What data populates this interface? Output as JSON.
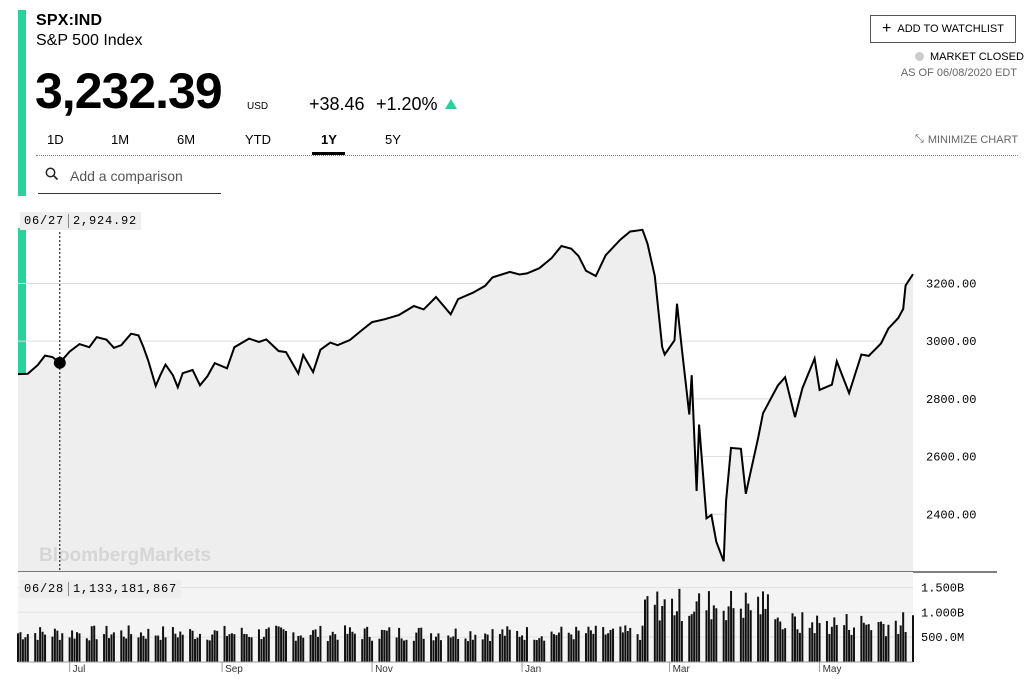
{
  "header": {
    "ticker": "SPX:IND",
    "name": "S&P 500 Index",
    "price": "3,232.39",
    "currency": "USD",
    "change": "+38.46",
    "change_pct": "+1.20%",
    "change_direction_icon": "up-triangle-icon",
    "up_color": "#2bd19b"
  },
  "watchlist": {
    "label": "ADD TO WATCHLIST",
    "icon": "plus-icon"
  },
  "market": {
    "status": "MARKET CLOSED",
    "as_of": "AS OF 06/08/2020 EDT"
  },
  "tabs": [
    {
      "label": "1D"
    },
    {
      "label": "1M"
    },
    {
      "label": "6M"
    },
    {
      "label": "YTD"
    },
    {
      "label": "1Y",
      "selected": true
    },
    {
      "label": "5Y"
    }
  ],
  "minimize": {
    "label": "MINIMIZE CHART",
    "icon": "minimize-icon"
  },
  "search": {
    "placeholder": "Add a comparison",
    "icon": "search-icon"
  },
  "tooltip": {
    "price_date": "06/27",
    "price_value": "2,924.92",
    "volume_date": "06/28",
    "volume_value": "1,133,181,867"
  },
  "watermark": "BloombergMarkets",
  "chart_data": {
    "type": "line",
    "line_color": "#000000",
    "area_color": "#eeeeee",
    "ylim": [
      2200,
      3420
    ],
    "ytick_labels": [
      "3200.00",
      "3000.00",
      "2800.00",
      "2600.00",
      "2400.00"
    ],
    "yticks": [
      3200,
      3000,
      2800,
      2600,
      2400
    ],
    "x_labels": [
      "Jul",
      "Sep",
      "Nov",
      "Jan",
      "Mar",
      "May"
    ],
    "x_label_dates": [
      "2019-07-01",
      "2019-09-01",
      "2019-11-01",
      "2020-01-01",
      "2020-03-01",
      "2020-05-01"
    ],
    "xlim": [
      "2019-06-10",
      "2020-06-08"
    ],
    "series": [
      {
        "values": [
          [
            "2019-06-10",
            2886
          ],
          [
            "2019-06-14",
            2887
          ],
          [
            "2019-06-18",
            2917
          ],
          [
            "2019-06-21",
            2950
          ],
          [
            "2019-06-24",
            2945
          ],
          [
            "2019-06-27",
            2925
          ],
          [
            "2019-07-01",
            2964
          ],
          [
            "2019-07-05",
            2990
          ],
          [
            "2019-07-09",
            2979
          ],
          [
            "2019-07-12",
            3014
          ],
          [
            "2019-07-16",
            3005
          ],
          [
            "2019-07-19",
            2977
          ],
          [
            "2019-07-22",
            2986
          ],
          [
            "2019-07-26",
            3026
          ],
          [
            "2019-07-29",
            3020
          ],
          [
            "2019-07-31",
            2980
          ],
          [
            "2019-08-02",
            2932
          ],
          [
            "2019-08-05",
            2845
          ],
          [
            "2019-08-07",
            2884
          ],
          [
            "2019-08-09",
            2919
          ],
          [
            "2019-08-12",
            2882
          ],
          [
            "2019-08-14",
            2840
          ],
          [
            "2019-08-16",
            2889
          ],
          [
            "2019-08-20",
            2900
          ],
          [
            "2019-08-23",
            2847
          ],
          [
            "2019-08-26",
            2878
          ],
          [
            "2019-08-29",
            2924
          ],
          [
            "2019-09-03",
            2906
          ],
          [
            "2019-09-06",
            2979
          ],
          [
            "2019-09-12",
            3009
          ],
          [
            "2019-09-16",
            2997
          ],
          [
            "2019-09-19",
            3006
          ],
          [
            "2019-09-24",
            2966
          ],
          [
            "2019-09-27",
            2962
          ],
          [
            "2019-10-02",
            2888
          ],
          [
            "2019-10-04",
            2952
          ],
          [
            "2019-10-08",
            2893
          ],
          [
            "2019-10-11",
            2970
          ],
          [
            "2019-10-15",
            2995
          ],
          [
            "2019-10-18",
            2986
          ],
          [
            "2019-10-23",
            3004
          ],
          [
            "2019-10-28",
            3039
          ],
          [
            "2019-11-01",
            3066
          ],
          [
            "2019-11-06",
            3076
          ],
          [
            "2019-11-12",
            3091
          ],
          [
            "2019-11-18",
            3122
          ],
          [
            "2019-11-22",
            3110
          ],
          [
            "2019-11-27",
            3153
          ],
          [
            "2019-12-03",
            3093
          ],
          [
            "2019-12-06",
            3146
          ],
          [
            "2019-12-12",
            3168
          ],
          [
            "2019-12-17",
            3192
          ],
          [
            "2019-12-20",
            3221
          ],
          [
            "2019-12-27",
            3240
          ],
          [
            "2019-12-31",
            3231
          ],
          [
            "2020-01-03",
            3235
          ],
          [
            "2020-01-08",
            3253
          ],
          [
            "2020-01-13",
            3288
          ],
          [
            "2020-01-17",
            3330
          ],
          [
            "2020-01-21",
            3321
          ],
          [
            "2020-01-24",
            3295
          ],
          [
            "2020-01-27",
            3244
          ],
          [
            "2020-01-31",
            3226
          ],
          [
            "2020-02-04",
            3298
          ],
          [
            "2020-02-10",
            3352
          ],
          [
            "2020-02-14",
            3380
          ],
          [
            "2020-02-19",
            3386
          ],
          [
            "2020-02-21",
            3338
          ],
          [
            "2020-02-24",
            3226
          ],
          [
            "2020-02-27",
            2979
          ],
          [
            "2020-02-28",
            2954
          ],
          [
            "2020-03-03",
            3003
          ],
          [
            "2020-03-04",
            3130
          ],
          [
            "2020-03-06",
            2972
          ],
          [
            "2020-03-09",
            2746
          ],
          [
            "2020-03-10",
            2882
          ],
          [
            "2020-03-12",
            2481
          ],
          [
            "2020-03-13",
            2711
          ],
          [
            "2020-03-16",
            2386
          ],
          [
            "2020-03-18",
            2398
          ],
          [
            "2020-03-20",
            2305
          ],
          [
            "2020-03-23",
            2237
          ],
          [
            "2020-03-24",
            2447
          ],
          [
            "2020-03-26",
            2630
          ],
          [
            "2020-03-30",
            2627
          ],
          [
            "2020-04-01",
            2471
          ],
          [
            "2020-04-06",
            2664
          ],
          [
            "2020-04-08",
            2750
          ],
          [
            "2020-04-14",
            2846
          ],
          [
            "2020-04-17",
            2875
          ],
          [
            "2020-04-21",
            2737
          ],
          [
            "2020-04-24",
            2837
          ],
          [
            "2020-04-29",
            2940
          ],
          [
            "2020-05-01",
            2831
          ],
          [
            "2020-05-06",
            2849
          ],
          [
            "2020-05-08",
            2930
          ],
          [
            "2020-05-13",
            2820
          ],
          [
            "2020-05-18",
            2954
          ],
          [
            "2020-05-21",
            2949
          ],
          [
            "2020-05-26",
            2992
          ],
          [
            "2020-05-29",
            3044
          ],
          [
            "2020-06-02",
            3080
          ],
          [
            "2020-06-04",
            3112
          ],
          [
            "2020-06-05",
            3193
          ],
          [
            "2020-06-08",
            3232
          ]
        ]
      }
    ],
    "volume": {
      "ytick_labels": [
        "1.500B",
        "1.000B",
        "500.0M"
      ],
      "yticks": [
        1500,
        1000,
        500
      ],
      "ylim": [
        0,
        1650
      ],
      "unit": "millions"
    }
  }
}
